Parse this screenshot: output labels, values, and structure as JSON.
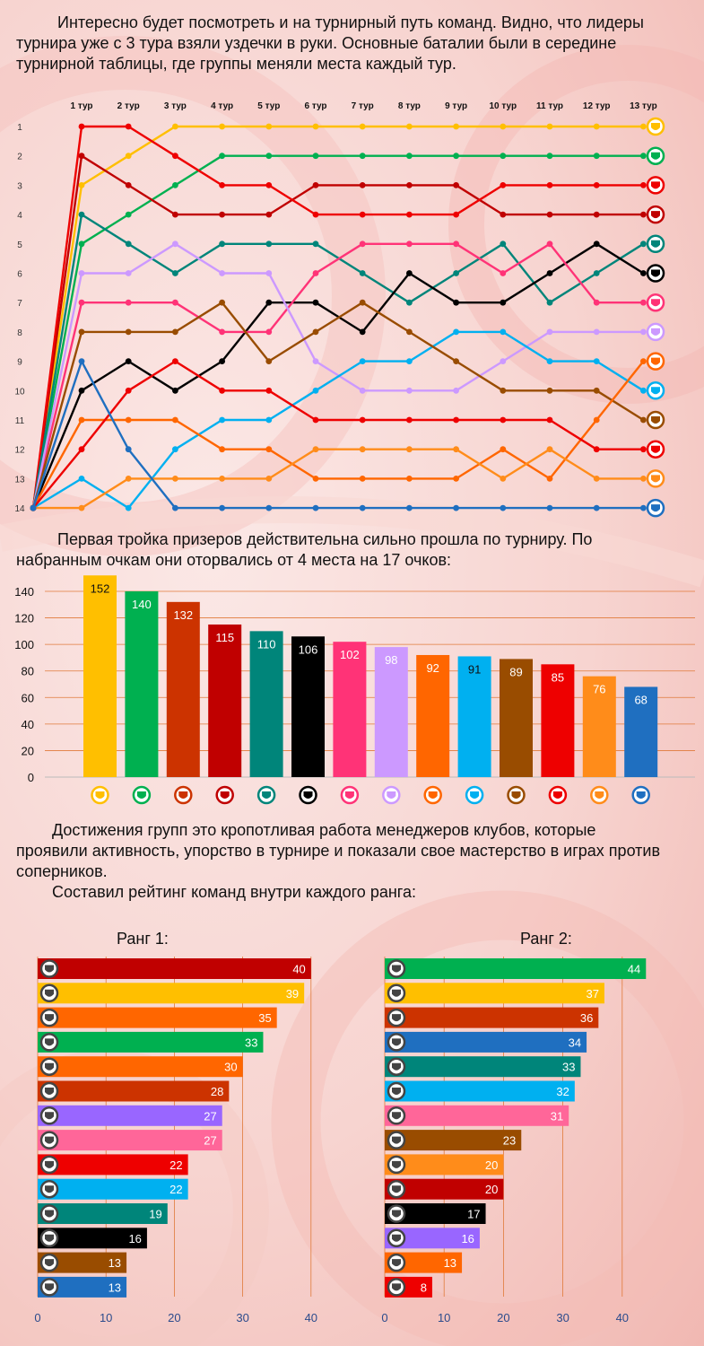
{
  "colors": {
    "gold": "#ffbf00",
    "green": "#00b050",
    "darkred": "#c00000",
    "red": "#ee0000",
    "teal": "#00857a",
    "black": "#000000",
    "pink": "#ff3377",
    "lilac": "#cc99ff",
    "orange": "#ff6600",
    "sky": "#00b0f0",
    "brown": "#994c00",
    "blue": "#1f6fc0",
    "rust": "#cc3300",
    "orange2": "#ff8c1a"
  },
  "texts": {
    "intro": [
      "Интересно будет посмотреть и на турнирный путь команд. Видно, что лидеры",
      "турнира уже с 3 тура взяли уздечки в руки. Основные баталии были в середине",
      "турнирной таблицы, где группы меняли места каждый тур."
    ],
    "podium": [
      "Первая тройка призеров действительна сильно прошла по турниру. По",
      "набранным очкам они оторвались от 4 места на 17 очков:"
    ],
    "managers": [
      "Достижения групп это кропотливая работа менеджеров клубов, которые",
      "проявили активность, упорство в турнире и показали свое мастерство в играх против",
      "соперников."
    ],
    "rating": [
      "Составил рейтинг команд внутри каждого ранга:"
    ]
  },
  "chart_data": [
    {
      "type": "line",
      "x": [
        "1 тур",
        "2 тур",
        "3 тур",
        "4 тур",
        "5 тур",
        "6 тур",
        "7 тур",
        "8 тур",
        "9 тур",
        "10 тур",
        "11 тур",
        "12 тур",
        "13 тур"
      ],
      "yticks": [
        "1",
        "2",
        "3",
        "4",
        "5",
        "6",
        "7",
        "8",
        "9",
        "10",
        "11",
        "12",
        "13",
        "14"
      ],
      "ylim": [
        14,
        1
      ],
      "start_position": 14,
      "grid": false,
      "series": [
        {
          "color": "#ffbf00",
          "values": [
            3,
            2,
            1,
            1,
            1,
            1,
            1,
            1,
            1,
            1,
            1,
            1,
            1
          ]
        },
        {
          "color": "#00b050",
          "values": [
            5,
            4,
            3,
            2,
            2,
            2,
            2,
            2,
            2,
            2,
            2,
            2,
            2
          ]
        },
        {
          "color": "#c00000",
          "values": [
            2,
            3,
            4,
            4,
            4,
            3,
            3,
            3,
            3,
            4,
            4,
            4,
            4
          ]
        },
        {
          "color": "#ee0000",
          "values": [
            1,
            1,
            2,
            3,
            3,
            4,
            4,
            4,
            4,
            3,
            3,
            3,
            3
          ]
        },
        {
          "color": "#00857a",
          "values": [
            4,
            5,
            6,
            5,
            5,
            5,
            6,
            7,
            6,
            5,
            7,
            6,
            5
          ]
        },
        {
          "color": "#000000",
          "values": [
            10,
            9,
            10,
            9,
            7,
            7,
            8,
            6,
            7,
            7,
            6,
            5,
            6
          ]
        },
        {
          "color": "#ff3377",
          "values": [
            7,
            7,
            7,
            8,
            8,
            6,
            5,
            5,
            5,
            6,
            5,
            7,
            7
          ]
        },
        {
          "color": "#cc99ff",
          "values": [
            6,
            6,
            5,
            6,
            6,
            9,
            10,
            10,
            10,
            9,
            8,
            8,
            8
          ]
        },
        {
          "color": "#00b0f0",
          "values": [
            13,
            14,
            12,
            11,
            11,
            10,
            9,
            9,
            8,
            8,
            9,
            9,
            10
          ]
        },
        {
          "color": "#994c00",
          "values": [
            8,
            8,
            8,
            7,
            9,
            8,
            7,
            8,
            9,
            10,
            10,
            10,
            11
          ]
        },
        {
          "color": "#ff6600",
          "values": [
            11,
            11,
            11,
            12,
            12,
            13,
            13,
            13,
            13,
            12,
            13,
            11,
            9
          ]
        },
        {
          "color": "#ee0000",
          "values": [
            12,
            10,
            9,
            10,
            10,
            11,
            11,
            11,
            11,
            11,
            11,
            12,
            12
          ]
        },
        {
          "color": "#ff8c1a",
          "values": [
            14,
            13,
            13,
            13,
            13,
            12,
            12,
            12,
            12,
            13,
            12,
            13,
            13
          ]
        },
        {
          "color": "#1f6fc0",
          "values": [
            9,
            12,
            14,
            14,
            14,
            14,
            14,
            14,
            14,
            14,
            14,
            14,
            14
          ]
        }
      ]
    },
    {
      "type": "bar",
      "values": [
        152,
        140,
        132,
        115,
        110,
        106,
        102,
        98,
        92,
        91,
        89,
        85,
        76,
        68
      ],
      "colors": [
        "#ffbf00",
        "#00b050",
        "#cc3300",
        "#c00000",
        "#00857a",
        "#000000",
        "#ff3377",
        "#cc99ff",
        "#ff6600",
        "#00b0f0",
        "#994c00",
        "#ee0000",
        "#ff8c1a",
        "#1f6fc0"
      ],
      "yticks": [
        0,
        20,
        40,
        60,
        80,
        100,
        120,
        140
      ],
      "ylim": [
        0,
        160
      ],
      "grid": true
    },
    {
      "type": "bar",
      "orientation": "horizontal",
      "title": "Ранг 1:",
      "values": [
        40,
        39,
        35,
        33,
        30,
        28,
        27,
        27,
        22,
        22,
        19,
        16,
        13,
        13
      ],
      "colors": [
        "#c00000",
        "#ffbf00",
        "#ff6600",
        "#00b050",
        "#ff6600",
        "#cc3300",
        "#9966ff",
        "#ff6699",
        "#ee0000",
        "#00b0f0",
        "#00857a",
        "#000000",
        "#994c00",
        "#1f6fc0"
      ],
      "xticks": [
        0,
        10,
        20,
        30,
        40
      ],
      "xlim": [
        0,
        40
      ],
      "grid": true
    },
    {
      "type": "bar",
      "orientation": "horizontal",
      "title": "Ранг 2:",
      "values": [
        44,
        37,
        36,
        34,
        33,
        32,
        31,
        23,
        20,
        20,
        17,
        16,
        13,
        8
      ],
      "colors": [
        "#00b050",
        "#ffbf00",
        "#cc3300",
        "#1f6fc0",
        "#00857a",
        "#00b0f0",
        "#ff6699",
        "#994c00",
        "#ff8c1a",
        "#c00000",
        "#000000",
        "#9966ff",
        "#ff6600",
        "#ee0000"
      ],
      "xticks": [
        0,
        10,
        20,
        30,
        40
      ],
      "xlim": [
        0,
        45
      ],
      "grid": true
    }
  ]
}
